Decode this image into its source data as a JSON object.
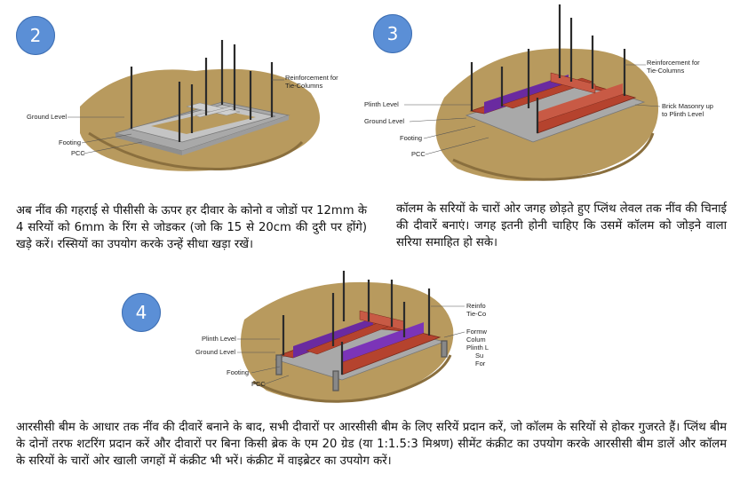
{
  "steps": [
    {
      "number": "2",
      "labels": {
        "reinforcement": [
          "Reinforcement for",
          "Tie-Columns"
        ],
        "ground_level": "Ground Level",
        "footing": "Footing",
        "pcc": "PCC"
      },
      "text": "अब नींव की गहराई से पीसीसी के ऊपर हर दीवार के कोनो व जोडों पर 12mm के 4 सरियों को 6mm के रिंग से जोडकर (जो कि 15 से 20cm की दुरी पर होंगे) खड़े करें। रस्सियों का उपयोग करके उन्हें सीधा खड़ा रखें।"
    },
    {
      "number": "3",
      "labels": {
        "reinforcement": [
          "Reinforcement for",
          "Tie-Columns"
        ],
        "plinth_level": "Plinth Level",
        "ground_level": "Ground Level",
        "footing": "Footing",
        "pcc": "PCC",
        "brick_masonry": [
          "Brick Masonry up",
          "to Plinth Level"
        ]
      },
      "text": "कॉलम के सरियों के चारों ओर जगह छोड़ते हुए प्लिंथ लेवल तक नींव की चिनाई की दीवारें बनाएं। जगह इतनी होनी चाहिए कि उसमें कॉलम को जोड़ने वाला सरिया समाहित हो सके।"
    },
    {
      "number": "4",
      "labels": {
        "plinth_level": "Plinth Level",
        "ground_level": "Ground Level",
        "footing": "Footing",
        "pcc": "PCC",
        "reinforcement_cut": [
          "Reinfo",
          "Tie-Co"
        ],
        "formwork_cut": [
          "Formw",
          "Colum",
          "Plinth L",
          "Su",
          "For"
        ]
      },
      "text": "आरसीसी बीम के आधार तक नींव की दीवारें बनाने के बाद, सभी दीवारों पर आरसीसी बीम के लिए सरियें प्रदान करें, जो कॉलम के सरियों से होकर गुजरते हैं। प्लिंथ बीम के दोनों तरफ शटरिंग प्रदान करें और दीवारों पर बिना किसी ब्रेक के एम 20 ग्रेड (या 1:1.5:3 मिश्रण) सीमेंट कंक्रीट का उपयोग करके आरसीसी बीम डालें और कॉलम के सरियों के चारों ओर खाली जगहों में कंक्रीट भी भरें। कंक्रीट में वाइब्रेटर का उपयोग करें।"
    }
  ],
  "colors": {
    "badge": "#5b8fd6",
    "soil": "#b89a5e",
    "soil_dark": "#8a6f3e",
    "concrete": "#b3b3b3",
    "masonry": "#b5432e",
    "formwork": "#6a2aa0",
    "rebar": "#2b2b2b"
  }
}
